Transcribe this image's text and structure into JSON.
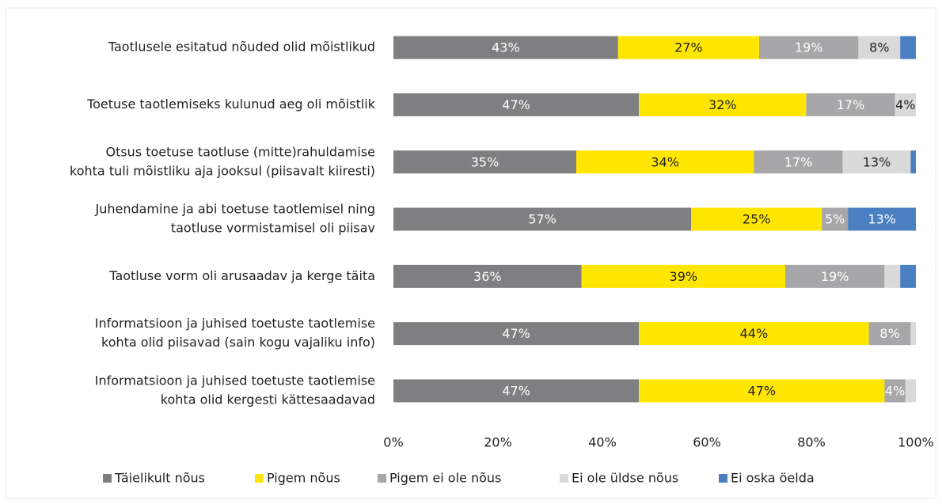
{
  "chart_data": {
    "type": "stacked-barh",
    "categories": [
      [
        "Taotlusele esitatud nõuded olid mõistlikud"
      ],
      [
        "Toetuse taotlemiseks kulunud aeg oli mõistlik"
      ],
      [
        "Otsus toetuse taotluse (mitte)rahuldamise",
        "kohta tuli mõistliku aja jooksul (piisavalt kiiresti)"
      ],
      [
        "Juhendamine ja abi toetuse taotlemisel ning",
        "taotluse vormistamisel oli piisav"
      ],
      [
        "Taotluse vorm oli arusaadav ja kerge täita"
      ],
      [
        "Informatsioon ja juhised toetuste taotlemise",
        "kohta olid piisavad (sain kogu vajaliku info)"
      ],
      [
        "Informatsioon ja juhised toetuste taotlemise",
        "kohta olid kergesti kättesaadavad"
      ]
    ],
    "series": [
      {
        "name": "Täielikult nõus",
        "color": "#7f7e80",
        "label_color": "#ffffff",
        "values": [
          43,
          47,
          35,
          57,
          36,
          47,
          47
        ],
        "value_labels": [
          "43%",
          "47%",
          "35%",
          "57%",
          "36%",
          "47%",
          "47%"
        ]
      },
      {
        "name": "Pigem nõus",
        "color": "#ffe600",
        "label_color": "#222222",
        "values": [
          27,
          32,
          34,
          25,
          39,
          44,
          47
        ],
        "value_labels": [
          "27%",
          "32%",
          "34%",
          "25%",
          "39%",
          "44%",
          "47%"
        ]
      },
      {
        "name": "Pigem ei ole nõus",
        "color": "#a7a6a8",
        "label_color": "#ffffff",
        "values": [
          19,
          17,
          17,
          5,
          19,
          8,
          4
        ],
        "value_labels": [
          "19%",
          "17%",
          "17%",
          "5%",
          "19%",
          "8%",
          "4%"
        ]
      },
      {
        "name": "Ei ole üldse nõus",
        "color": "#d9d9d9",
        "label_color": "#222222",
        "values": [
          8,
          4,
          13,
          0,
          3,
          1,
          2
        ],
        "value_labels": [
          "8%",
          "4%",
          "13%",
          null,
          null,
          null,
          null
        ]
      },
      {
        "name": "Ei oska öelda",
        "color": "#4a7fc1",
        "label_color": "#ffffff",
        "values": [
          3,
          0,
          1,
          13,
          3,
          0,
          0
        ],
        "value_labels": [
          null,
          null,
          null,
          "13%",
          null,
          null,
          null
        ]
      }
    ],
    "xlim": [
      0,
      100
    ],
    "xticks": [
      {
        "value": 0,
        "label": "0%"
      },
      {
        "value": 20,
        "label": "20%"
      },
      {
        "value": 40,
        "label": "40%"
      },
      {
        "value": 60,
        "label": "60%"
      },
      {
        "value": 80,
        "label": "80%"
      },
      {
        "value": 100,
        "label": "100%"
      }
    ],
    "grid": false,
    "legend": "bottom"
  }
}
